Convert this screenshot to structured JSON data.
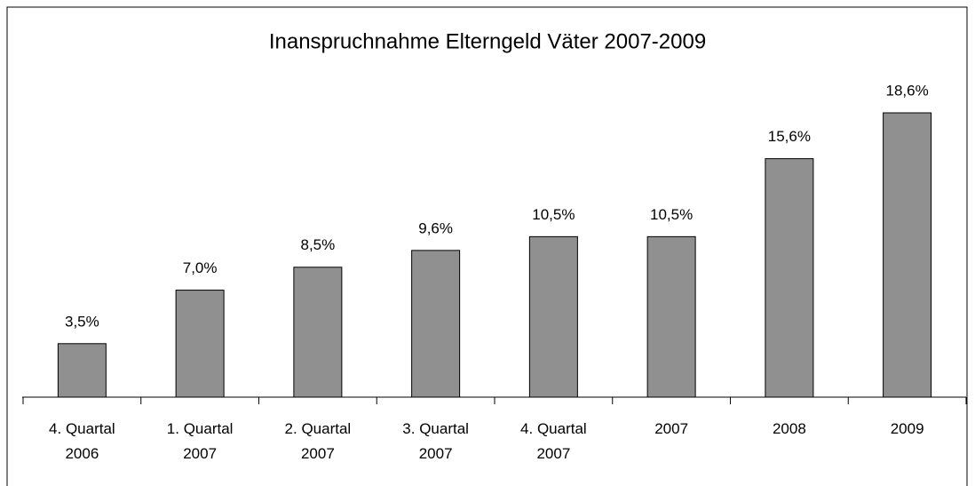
{
  "chart_data": {
    "type": "bar",
    "title": "Inanspruchnahme Elterngeld Väter 2007-2009",
    "categories": [
      "4. Quartal 2006",
      "1. Quartal 2007",
      "2. Quartal 2007",
      "3. Quartal 2007",
      "4. Quartal 2007",
      "2007",
      "2008",
      "2009"
    ],
    "values": [
      3.5,
      7.0,
      8.5,
      9.6,
      10.5,
      10.5,
      15.6,
      18.6
    ],
    "value_labels": [
      "3,5%",
      "7,0%",
      "8,5%",
      "9,6%",
      "10,5%",
      "10,5%",
      "15,6%",
      "18,6%"
    ],
    "color": "#909090"
  }
}
